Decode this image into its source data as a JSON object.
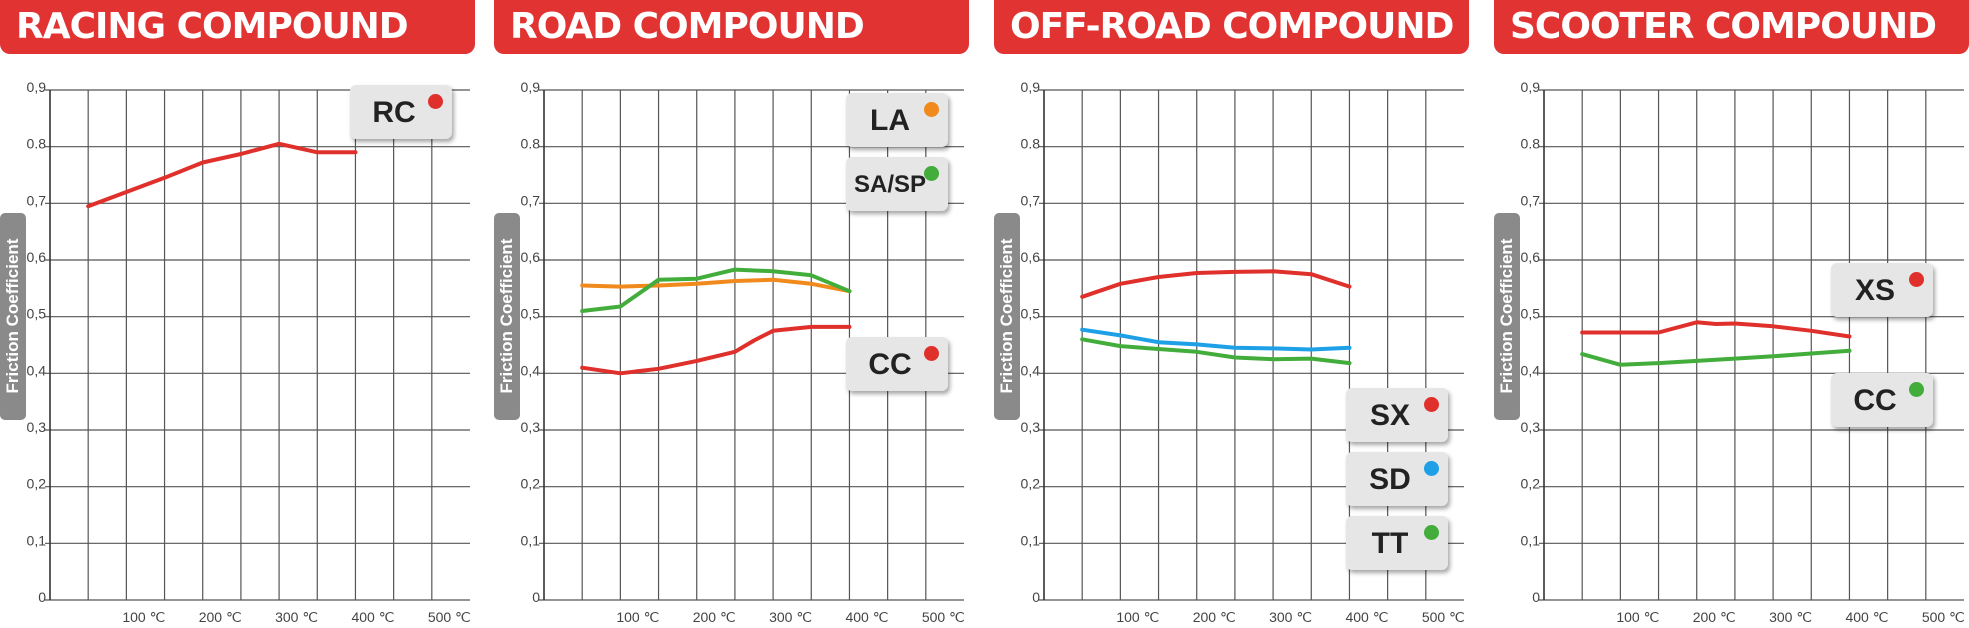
{
  "axis_labels": {
    "ylabel": "Friction Coefficient",
    "yticks": [
      "0",
      "0,1",
      "0,2",
      "0,3",
      "0,4",
      "0,5",
      "0,6",
      "0,7",
      "0.8",
      "0,9"
    ],
    "xticks": [
      "100 ℃",
      "200 ℃",
      "300 ℃",
      "400 ℃",
      "500 ℃"
    ]
  },
  "colors": {
    "banner": "#e23333",
    "red": "#e0302b",
    "orange": "#f08a1c",
    "green": "#43ad3c",
    "blue": "#1ea0e6"
  },
  "panels": [
    {
      "title": "RACING COMPOUND",
      "legend": [
        {
          "label": "RC",
          "color": "#e0302b"
        }
      ]
    },
    {
      "title": "ROAD COMPOUND",
      "legend": [
        {
          "label": "LA",
          "color": "#f08a1c"
        },
        {
          "label": "SA/SP",
          "color": "#43ad3c"
        },
        {
          "label": "CC",
          "color": "#e0302b"
        }
      ]
    },
    {
      "title": "OFF-ROAD COMPOUND",
      "legend": [
        {
          "label": "SX",
          "color": "#e0302b"
        },
        {
          "label": "SD",
          "color": "#1ea0e6"
        },
        {
          "label": "TT",
          "color": "#43ad3c"
        }
      ]
    },
    {
      "title": "SCOOTER COMPOUND",
      "legend": [
        {
          "label": "XS",
          "color": "#e0302b"
        },
        {
          "label": "CC",
          "color": "#43ad3c"
        }
      ]
    }
  ],
  "chart_data": [
    {
      "type": "line",
      "title": "RACING COMPOUND",
      "ylabel": "Friction Coefficient",
      "xticks": [
        "100 ℃",
        "200 ℃",
        "300 ℃",
        "400 ℃",
        "500 ℃"
      ],
      "xlim": [
        0,
        550
      ],
      "ylim": [
        0,
        0.9
      ],
      "grid": true,
      "legend_position": "top-right",
      "series": [
        {
          "name": "RC",
          "color": "#e0302b",
          "x": [
            50,
            100,
            150,
            200,
            250,
            300,
            350,
            400
          ],
          "y": [
            0.695,
            0.72,
            0.745,
            0.772,
            0.787,
            0.805,
            0.79,
            0.79
          ]
        }
      ]
    },
    {
      "type": "line",
      "title": "ROAD COMPOUND",
      "ylabel": "Friction Coefficient",
      "xticks": [
        "100 ℃",
        "200 ℃",
        "300 ℃",
        "400 ℃",
        "500 ℃"
      ],
      "xlim": [
        0,
        550
      ],
      "ylim": [
        0,
        0.9
      ],
      "grid": true,
      "legend_position": "right",
      "series": [
        {
          "name": "LA",
          "color": "#f08a1c",
          "x": [
            50,
            100,
            150,
            200,
            250,
            300,
            350,
            400
          ],
          "y": [
            0.555,
            0.553,
            0.555,
            0.558,
            0.563,
            0.565,
            0.558,
            0.545
          ]
        },
        {
          "name": "SA/SP",
          "color": "#43ad3c",
          "x": [
            50,
            100,
            150,
            200,
            250,
            300,
            350,
            400
          ],
          "y": [
            0.51,
            0.518,
            0.565,
            0.567,
            0.583,
            0.58,
            0.573,
            0.545
          ]
        },
        {
          "name": "CC",
          "color": "#e0302b",
          "x": [
            50,
            100,
            150,
            200,
            250,
            275,
            300,
            350,
            400
          ],
          "y": [
            0.41,
            0.4,
            0.408,
            0.422,
            0.438,
            0.458,
            0.475,
            0.482,
            0.482
          ]
        }
      ]
    },
    {
      "type": "line",
      "title": "OFF-ROAD COMPOUND",
      "ylabel": "Friction Coefficient",
      "xticks": [
        "100 ℃",
        "200 ℃",
        "300 ℃",
        "400 ℃",
        "500 ℃"
      ],
      "xlim": [
        0,
        550
      ],
      "ylim": [
        0,
        0.9
      ],
      "grid": true,
      "legend_position": "bottom-right",
      "series": [
        {
          "name": "SX",
          "color": "#e0302b",
          "x": [
            50,
            100,
            150,
            200,
            250,
            300,
            350,
            400
          ],
          "y": [
            0.535,
            0.558,
            0.57,
            0.577,
            0.579,
            0.58,
            0.575,
            0.553
          ]
        },
        {
          "name": "SD",
          "color": "#1ea0e6",
          "x": [
            50,
            100,
            150,
            200,
            250,
            300,
            350,
            400
          ],
          "y": [
            0.477,
            0.467,
            0.455,
            0.451,
            0.445,
            0.444,
            0.442,
            0.445
          ]
        },
        {
          "name": "TT",
          "color": "#43ad3c",
          "x": [
            50,
            100,
            150,
            200,
            250,
            300,
            350,
            400
          ],
          "y": [
            0.46,
            0.448,
            0.443,
            0.438,
            0.428,
            0.425,
            0.426,
            0.418
          ]
        }
      ]
    },
    {
      "type": "line",
      "title": "SCOOTER COMPOUND",
      "ylabel": "Friction Coefficient",
      "xticks": [
        "100 ℃",
        "200 ℃",
        "300 ℃",
        "400 ℃",
        "500 ℃"
      ],
      "xlim": [
        0,
        550
      ],
      "ylim": [
        0,
        0.9
      ],
      "grid": true,
      "legend_position": "right",
      "series": [
        {
          "name": "XS",
          "color": "#e0302b",
          "x": [
            50,
            100,
            150,
            200,
            225,
            250,
            300,
            350,
            400
          ],
          "y": [
            0.472,
            0.472,
            0.472,
            0.49,
            0.487,
            0.488,
            0.483,
            0.475,
            0.465
          ]
        },
        {
          "name": "CC",
          "color": "#43ad3c",
          "x": [
            50,
            100,
            150,
            200,
            250,
            300,
            350,
            400
          ],
          "y": [
            0.434,
            0.415,
            0.418,
            0.422,
            0.426,
            0.43,
            0.435,
            0.44
          ]
        }
      ]
    }
  ]
}
